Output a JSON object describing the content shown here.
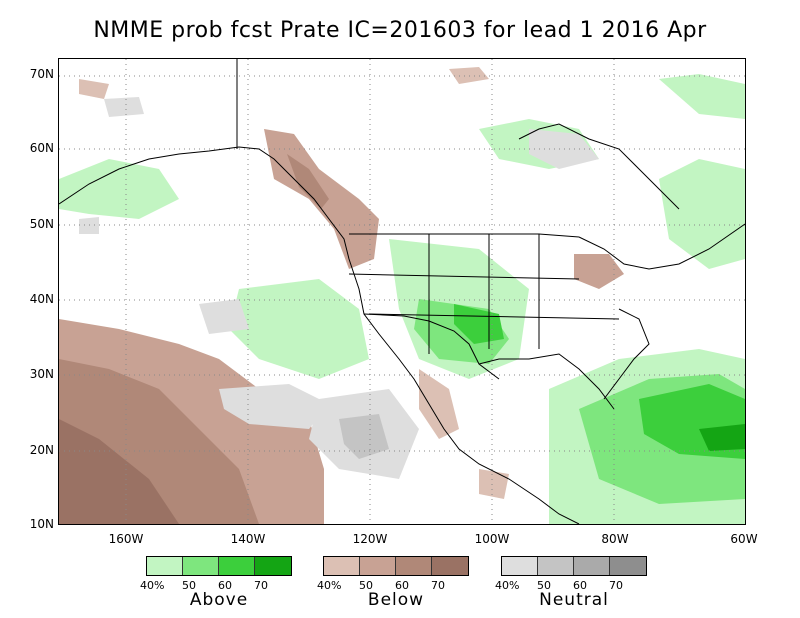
{
  "title": "NMME prob fcst Prate IC=201603 for lead 1 2016 Apr",
  "y_ticks": [
    "70N",
    "60N",
    "50N",
    "40N",
    "30N",
    "20N",
    "10N"
  ],
  "x_ticks": [
    "160W",
    "140W",
    "120W",
    "100W",
    "80W",
    "60W"
  ],
  "legend": [
    {
      "category": "Above",
      "ticks": [
        "40%",
        "50",
        "60",
        "70"
      ],
      "colors": [
        "#c2f5c2",
        "#7ee67e",
        "#3ccf3c",
        "#14a514"
      ]
    },
    {
      "category": "Below",
      "ticks": [
        "40%",
        "50",
        "60",
        "70"
      ],
      "colors": [
        "#dcc0b4",
        "#c8a294",
        "#b08878",
        "#9a7264"
      ]
    },
    {
      "category": "Neutral",
      "ticks": [
        "40%",
        "50",
        "60",
        "70"
      ],
      "colors": [
        "#dedede",
        "#c4c4c4",
        "#aaaaaa",
        "#8e8e8e"
      ]
    }
  ]
}
